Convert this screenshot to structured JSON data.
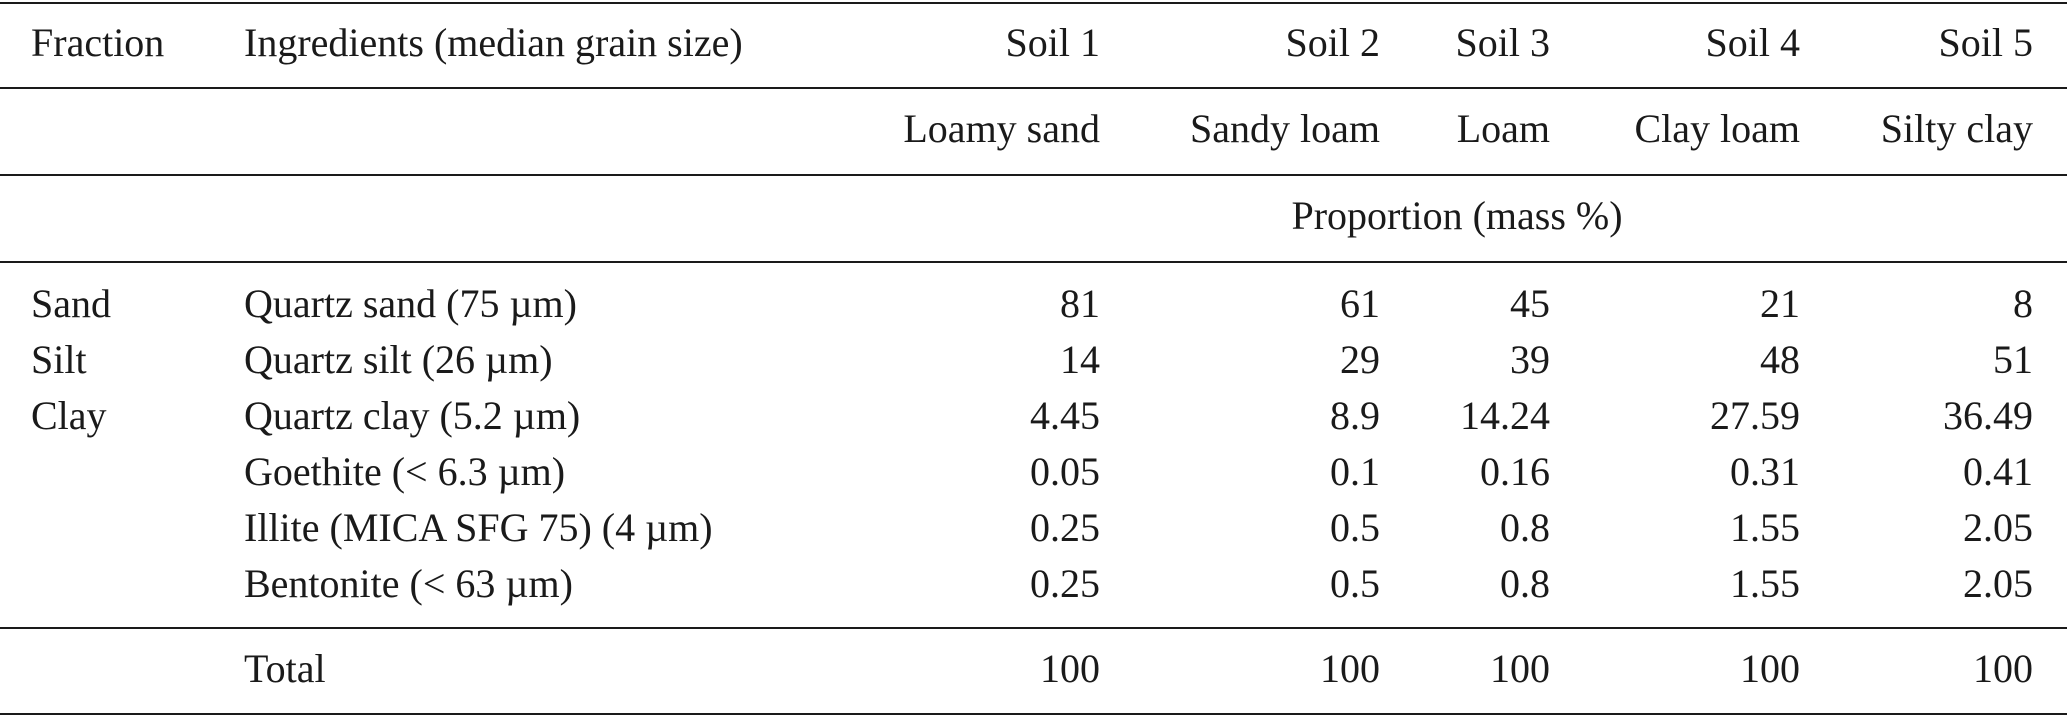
{
  "header": {
    "fraction": "Fraction",
    "ingredients": "Ingredients (median grain size)",
    "soils": [
      "Soil 1",
      "Soil 2",
      "Soil 3",
      "Soil 4",
      "Soil 5"
    ],
    "textures": [
      "Loamy sand",
      "Sandy loam",
      "Loam",
      "Clay loam",
      "Silty clay"
    ],
    "unit_caption": "Proportion (mass %)"
  },
  "rows": [
    {
      "fraction": "Sand",
      "ingredient": "Quartz sand (75 µm)",
      "values": [
        "81",
        "61",
        "45",
        "21",
        "8"
      ]
    },
    {
      "fraction": "Silt",
      "ingredient": "Quartz silt (26 µm)",
      "values": [
        "14",
        "29",
        "39",
        "48",
        "51"
      ]
    },
    {
      "fraction": "Clay",
      "ingredient": "Quartz clay (5.2 µm)",
      "values": [
        "4.45",
        "8.9",
        "14.24",
        "27.59",
        "36.49"
      ]
    },
    {
      "fraction": "",
      "ingredient": "Goethite (< 6.3 µm)",
      "values": [
        "0.05",
        "0.1",
        "0.16",
        "0.31",
        "0.41"
      ]
    },
    {
      "fraction": "",
      "ingredient": "Illite (MICA SFG 75) (4 µm)",
      "values": [
        "0.25",
        "0.5",
        "0.8",
        "1.55",
        "2.05"
      ]
    },
    {
      "fraction": "",
      "ingredient": "Bentonite (< 63 µm)",
      "values": [
        "0.25",
        "0.5",
        "0.8",
        "1.55",
        "2.05"
      ]
    }
  ],
  "total": {
    "label": "Total",
    "values": [
      "100",
      "100",
      "100",
      "100",
      "100"
    ]
  }
}
